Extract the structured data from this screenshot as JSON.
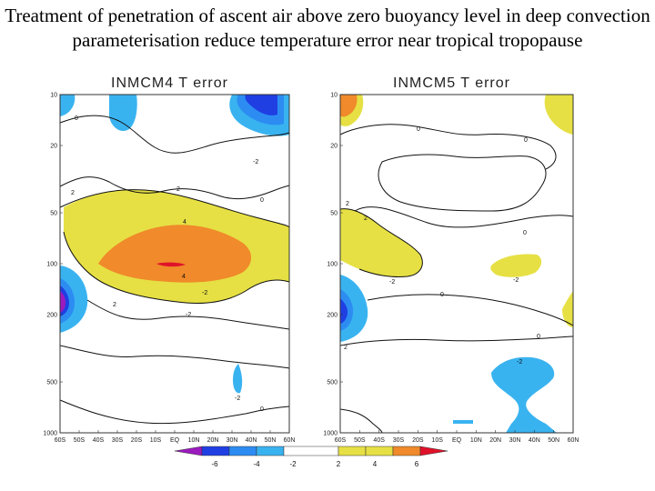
{
  "slide": {
    "title": "Treatment of penetration of ascent air above zero buoyancy level in deep convection parameterisation reduce temperature error near tropical tropopause"
  },
  "colors": {
    "n8": "#9b1bbf",
    "n6": "#1f3fe3",
    "n4": "#2c8cf2",
    "n2": "#39b3f0",
    "zero": "#ffffff",
    "p2": "#e6e044",
    "p4": "#f08a2a",
    "p6": "#e0122a"
  },
  "chart_data": [
    {
      "type": "contour",
      "title": "INMCM4  T  error",
      "x_ticks": [
        "60S",
        "50S",
        "40S",
        "30S",
        "20S",
        "10S",
        "EQ",
        "10N",
        "20N",
        "30N",
        "40N",
        "50N",
        "60N"
      ],
      "y_ticks": [
        "10",
        "20",
        "50",
        "100",
        "200",
        "500",
        "1000"
      ],
      "y_scale": "log",
      "y_range": [
        10,
        1000
      ],
      "x_range": [
        "60S",
        "60N"
      ],
      "contour_levels": [
        -6,
        -4,
        -2,
        2,
        4,
        6
      ],
      "contour_labels": [
        "0",
        "-2",
        "2",
        "0",
        "2",
        "4",
        "4",
        "-2",
        "2",
        "-2",
        "-2",
        "0"
      ]
    },
    {
      "type": "contour",
      "title": "INMCM5  T  error",
      "x_ticks": [
        "60S",
        "50S",
        "40S",
        "30S",
        "20S",
        "10S",
        "EQ",
        "10N",
        "20N",
        "30N",
        "40N",
        "50N",
        "60N"
      ],
      "y_ticks": [
        "10",
        "20",
        "50",
        "100",
        "200",
        "500",
        "1000"
      ],
      "y_scale": "log",
      "y_range": [
        10,
        1000
      ],
      "x_range": [
        "60S",
        "60N"
      ],
      "contour_levels": [
        -6,
        -4,
        -2,
        2,
        4,
        6
      ],
      "contour_labels": [
        "0",
        "0",
        "2",
        "0",
        "2",
        "-2",
        "0",
        "-2",
        "2",
        "-2",
        "0"
      ]
    }
  ],
  "colorbar": {
    "labels": [
      "-6",
      "-4",
      "-2",
      "2",
      "4",
      "6"
    ]
  }
}
